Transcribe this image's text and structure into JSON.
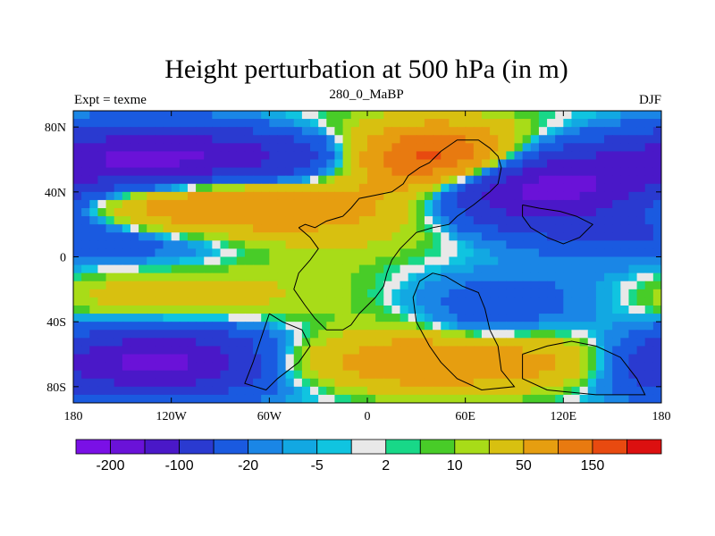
{
  "chart_data": {
    "type": "heatmap",
    "title": "Height perturbation at 500 hPa (in m)",
    "left_label": "Expt = texme",
    "center_label": "280_0_MaBP",
    "right_label": "DJF",
    "x_ticks": [
      "180",
      "120W",
      "60W",
      "0",
      "60E",
      "120E",
      "180"
    ],
    "x_tick_values": [
      -180,
      -120,
      -60,
      0,
      60,
      120,
      180
    ],
    "y_ticks": [
      "80N",
      "40N",
      "0",
      "40S",
      "80S"
    ],
    "y_tick_values": [
      80,
      40,
      0,
      -40,
      -80
    ],
    "xlim": [
      -180,
      180
    ],
    "ylim": [
      -90,
      90
    ],
    "colorbar": {
      "colors": [
        "#7a10e6",
        "#6a12d8",
        "#4a18c8",
        "#2a3ad0",
        "#1a5ae0",
        "#1a86e6",
        "#12a8e2",
        "#10c4e0",
        "#e8e8e8",
        "#18d888",
        "#48cc28",
        "#a8dc18",
        "#d8c010",
        "#e69e10",
        "#e87a10",
        "#e84a10",
        "#dc1010"
      ],
      "tick_labels": [
        "-200",
        "-100",
        "-20",
        "-5",
        "2",
        "10",
        "50",
        "150"
      ],
      "tick_after_box": [
        1,
        3,
        5,
        7,
        9,
        11,
        13,
        15
      ]
    },
    "field_blobs": [
      {
        "lon": -125,
        "lat": 58,
        "rx": 60,
        "ry": 16,
        "amp": -180
      },
      {
        "lon": -95,
        "lat": 35,
        "rx": 70,
        "ry": 14,
        "amp": 140
      },
      {
        "lon": -150,
        "lat": 10,
        "rx": 55,
        "ry": 10,
        "amp": -40
      },
      {
        "lon": -150,
        "lat": -25,
        "rx": 70,
        "ry": 12,
        "amp": 45
      },
      {
        "lon": -125,
        "lat": -65,
        "rx": 70,
        "ry": 14,
        "amp": -170
      },
      {
        "lon": -40,
        "lat": 55,
        "rx": 40,
        "ry": 14,
        "amp": -35
      },
      {
        "lon": -15,
        "lat": 20,
        "rx": 35,
        "ry": 12,
        "amp": 12
      },
      {
        "lon": -30,
        "lat": -5,
        "rx": 40,
        "ry": 16,
        "amp": 10
      },
      {
        "lon": -40,
        "lat": -65,
        "rx": 35,
        "ry": 12,
        "amp": 90
      },
      {
        "lon": 30,
        "lat": -65,
        "rx": 30,
        "ry": 12,
        "amp": 85
      },
      {
        "lon": 0,
        "lat": -40,
        "rx": 30,
        "ry": 14,
        "amp": 10
      },
      {
        "lon": 45,
        "lat": 62,
        "rx": 35,
        "ry": 12,
        "amp": 160
      },
      {
        "lon": 25,
        "lat": 50,
        "rx": 30,
        "ry": 16,
        "amp": 60
      },
      {
        "lon": 40,
        "lat": 15,
        "rx": 30,
        "ry": 15,
        "amp": 8
      },
      {
        "lon": 105,
        "lat": 42,
        "rx": 55,
        "ry": 16,
        "amp": -170
      },
      {
        "lon": 150,
        "lat": 20,
        "rx": 40,
        "ry": 10,
        "amp": -30
      },
      {
        "lon": 120,
        "lat": -25,
        "rx": 65,
        "ry": 14,
        "amp": -40
      },
      {
        "lon": 70,
        "lat": -45,
        "rx": 25,
        "ry": 14,
        "amp": -20
      },
      {
        "lon": 105,
        "lat": -65,
        "rx": 40,
        "ry": 12,
        "amp": 90
      },
      {
        "lon": 160,
        "lat": -55,
        "rx": 30,
        "ry": 14,
        "amp": 15
      },
      {
        "lon": 80,
        "lat": 80,
        "rx": 90,
        "ry": 8,
        "amp": 10
      },
      {
        "lon": -60,
        "lat": 82,
        "rx": 70,
        "ry": 8,
        "amp": 12
      }
    ],
    "land_outlines": [
      [
        [
          -42,
          18
        ],
        [
          -38,
          20
        ],
        [
          -32,
          18
        ],
        [
          -25,
          22
        ],
        [
          -15,
          25
        ],
        [
          -10,
          30
        ],
        [
          -5,
          36
        ],
        [
          5,
          38
        ],
        [
          15,
          40
        ],
        [
          22,
          45
        ],
        [
          25,
          50
        ],
        [
          32,
          55
        ],
        [
          38,
          58
        ],
        [
          45,
          65
        ],
        [
          55,
          72
        ],
        [
          68,
          72
        ],
        [
          75,
          67
        ],
        [
          80,
          62
        ],
        [
          82,
          55
        ],
        [
          80,
          45
        ],
        [
          75,
          40
        ],
        [
          65,
          32
        ],
        [
          55,
          25
        ],
        [
          50,
          20
        ],
        [
          40,
          18
        ],
        [
          30,
          15
        ],
        [
          25,
          10
        ],
        [
          20,
          5
        ],
        [
          15,
          -2
        ],
        [
          12,
          -10
        ],
        [
          10,
          -18
        ],
        [
          5,
          -25
        ],
        [
          0,
          -30
        ],
        [
          -5,
          -35
        ],
        [
          -10,
          -42
        ],
        [
          -15,
          -45
        ],
        [
          -25,
          -45
        ],
        [
          -32,
          -38
        ],
        [
          -38,
          -30
        ],
        [
          -45,
          -20
        ],
        [
          -42,
          -10
        ],
        [
          -35,
          -2
        ],
        [
          -30,
          5
        ],
        [
          -35,
          12
        ],
        [
          -42,
          18
        ]
      ],
      [
        [
          40,
          -10
        ],
        [
          48,
          -12
        ],
        [
          58,
          -18
        ],
        [
          68,
          -22
        ],
        [
          72,
          -32
        ],
        [
          75,
          -45
        ],
        [
          80,
          -55
        ],
        [
          82,
          -70
        ],
        [
          90,
          -80
        ],
        [
          70,
          -82
        ],
        [
          55,
          -75
        ],
        [
          45,
          -65
        ],
        [
          38,
          -55
        ],
        [
          30,
          -40
        ],
        [
          28,
          -25
        ],
        [
          32,
          -15
        ],
        [
          40,
          -10
        ]
      ],
      [
        [
          -60,
          -35
        ],
        [
          -52,
          -40
        ],
        [
          -40,
          -45
        ],
        [
          -35,
          -55
        ],
        [
          -42,
          -65
        ],
        [
          -55,
          -75
        ],
        [
          -62,
          -82
        ],
        [
          -75,
          -78
        ],
        [
          -70,
          -65
        ],
        [
          -65,
          -50
        ],
        [
          -60,
          -35
        ]
      ],
      [
        [
          95,
          -60
        ],
        [
          110,
          -55
        ],
        [
          125,
          -52
        ],
        [
          140,
          -55
        ],
        [
          155,
          -62
        ],
        [
          165,
          -75
        ],
        [
          170,
          -85
        ],
        [
          140,
          -85
        ],
        [
          110,
          -82
        ],
        [
          95,
          -75
        ],
        [
          95,
          -60
        ]
      ],
      [
        [
          95,
          32
        ],
        [
          105,
          30
        ],
        [
          118,
          28
        ],
        [
          128,
          25
        ],
        [
          138,
          20
        ],
        [
          130,
          12
        ],
        [
          120,
          8
        ],
        [
          110,
          12
        ],
        [
          100,
          18
        ],
        [
          95,
          25
        ],
        [
          95,
          32
        ]
      ]
    ]
  }
}
